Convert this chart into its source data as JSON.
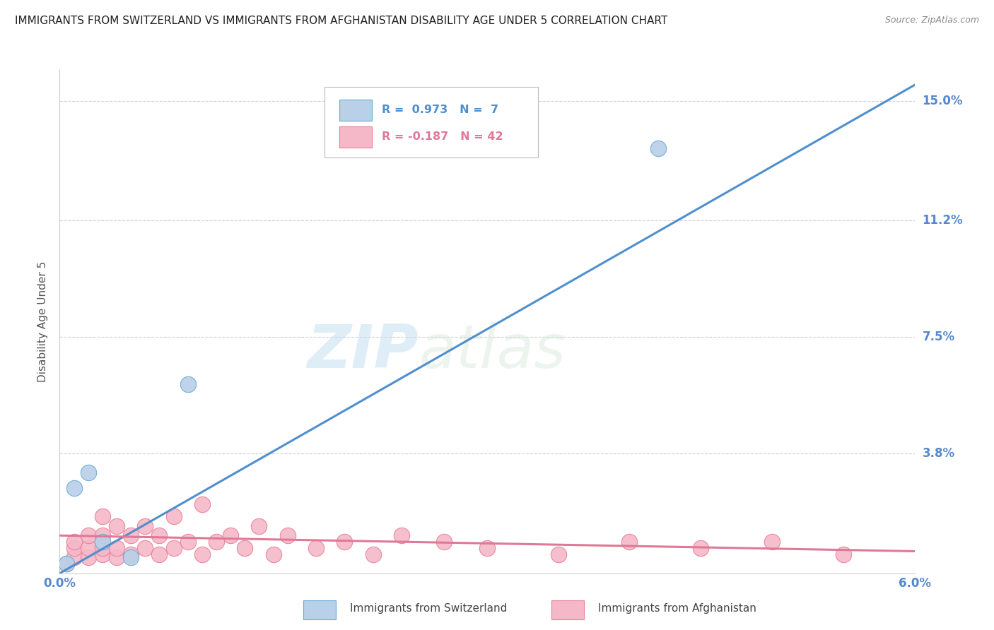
{
  "title": "IMMIGRANTS FROM SWITZERLAND VS IMMIGRANTS FROM AFGHANISTAN DISABILITY AGE UNDER 5 CORRELATION CHART",
  "source": "Source: ZipAtlas.com",
  "ylabel": "Disability Age Under 5",
  "xlim": [
    0.0,
    0.06
  ],
  "ylim": [
    0.0,
    0.16
  ],
  "ytick_values": [
    0.038,
    0.075,
    0.112,
    0.15
  ],
  "ytick_labels": [
    "3.8%",
    "7.5%",
    "11.2%",
    "15.0%"
  ],
  "switzerland_color": "#b8d0e8",
  "switzerland_edge": "#6aaad4",
  "afghanistan_color": "#f5b8c8",
  "afghanistan_edge": "#e8809a",
  "trendline_switzerland_color": "#4f8fce",
  "trendline_afghanistan_color": "#e07898",
  "legend_r_switzerland": "R =  0.973",
  "legend_n_switzerland": "N =  7",
  "legend_r_afghanistan": "R = -0.187",
  "legend_n_afghanistan": "N = 42",
  "watermark_zip": "ZIP",
  "watermark_atlas": "atlas",
  "background_color": "#ffffff",
  "grid_color": "#d0d0d0",
  "switzerland_x": [
    0.0005,
    0.001,
    0.002,
    0.003,
    0.005,
    0.009,
    0.042
  ],
  "switzerland_y": [
    0.003,
    0.027,
    0.032,
    0.01,
    0.005,
    0.06,
    0.135
  ],
  "afghanistan_x": [
    0.0005,
    0.001,
    0.001,
    0.001,
    0.002,
    0.002,
    0.002,
    0.003,
    0.003,
    0.003,
    0.003,
    0.004,
    0.004,
    0.004,
    0.005,
    0.005,
    0.006,
    0.006,
    0.007,
    0.007,
    0.008,
    0.008,
    0.009,
    0.01,
    0.01,
    0.011,
    0.012,
    0.013,
    0.014,
    0.015,
    0.016,
    0.018,
    0.02,
    0.022,
    0.024,
    0.027,
    0.03,
    0.035,
    0.04,
    0.045,
    0.05,
    0.055
  ],
  "afghanistan_y": [
    0.003,
    0.005,
    0.008,
    0.01,
    0.005,
    0.008,
    0.012,
    0.006,
    0.008,
    0.012,
    0.018,
    0.005,
    0.008,
    0.015,
    0.006,
    0.012,
    0.008,
    0.015,
    0.006,
    0.012,
    0.008,
    0.018,
    0.01,
    0.006,
    0.022,
    0.01,
    0.012,
    0.008,
    0.015,
    0.006,
    0.012,
    0.008,
    0.01,
    0.006,
    0.012,
    0.01,
    0.008,
    0.006,
    0.01,
    0.008,
    0.01,
    0.006
  ],
  "sw_trend_x0": 0.0,
  "sw_trend_y0": 0.0,
  "sw_trend_x1": 0.06,
  "sw_trend_y1": 0.155,
  "af_trend_x0": 0.0,
  "af_trend_y0": 0.012,
  "af_trend_x1": 0.06,
  "af_trend_y1": 0.007
}
